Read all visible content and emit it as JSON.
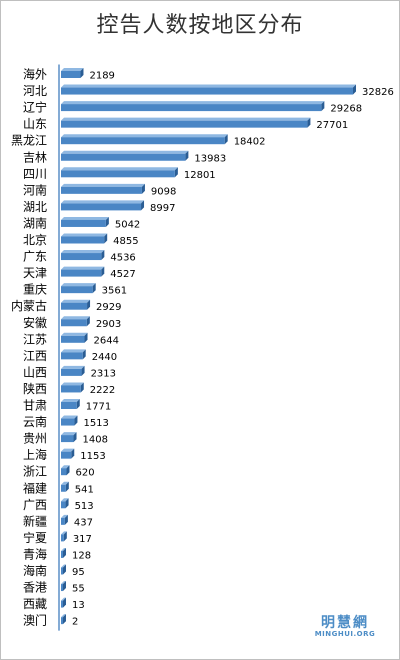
{
  "chart_data": {
    "type": "bar",
    "orientation": "horizontal",
    "title": "控告人数按地区分布",
    "xlabel": "",
    "ylabel": "",
    "xlim": [
      0,
      32826
    ],
    "grid": false,
    "legend": "none",
    "categories": [
      "海外",
      "河北",
      "辽宁",
      "山东",
      "黑龙江",
      "吉林",
      "四川",
      "河南",
      "湖北",
      "湖南",
      "北京",
      "广东",
      "天津",
      "重庆",
      "内蒙古",
      "安徽",
      "江苏",
      "江西",
      "山西",
      "陕西",
      "甘肃",
      "云南",
      "贵州",
      "上海",
      "浙江",
      "福建",
      "广西",
      "新疆",
      "宁夏",
      "青海",
      "海南",
      "香港",
      "西藏",
      "澳门"
    ],
    "values": [
      2189,
      32826,
      29268,
      27701,
      18402,
      13983,
      12801,
      9098,
      8997,
      5042,
      4855,
      4536,
      4527,
      3561,
      2929,
      2903,
      2644,
      2440,
      2313,
      2222,
      1771,
      1513,
      1408,
      1153,
      620,
      541,
      513,
      437,
      317,
      128,
      95,
      55,
      13,
      2
    ],
    "colors": {
      "bar": "#4a86c5",
      "bar_top": "#8fb8e2",
      "bar_side": "#2a5d94",
      "axis": "#5b8fc7"
    }
  },
  "watermark": {
    "name": "明慧網",
    "site": "MINGHUI.ORG"
  }
}
